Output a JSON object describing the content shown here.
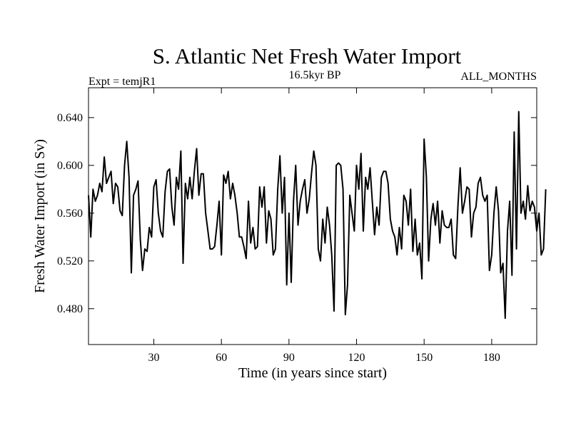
{
  "chart_data": {
    "type": "line",
    "title": "S. Atlantic Net Fresh Water Import",
    "subtitle_left": "Expt = temjR1",
    "subtitle_center": "16.5kyr BP",
    "subtitle_right": "ALL_MONTHS",
    "xlabel": "Time (in years since start)",
    "ylabel": "Fresh Water Import (in Sv)",
    "xlim": [
      1,
      200
    ],
    "ylim": [
      0.45,
      0.665
    ],
    "xticks": [
      30,
      60,
      90,
      120,
      150,
      180
    ],
    "xtick_labels": [
      "30",
      "60",
      "90",
      "120",
      "150",
      "180"
    ],
    "yticks": [
      0.48,
      0.52,
      0.56,
      0.6,
      0.64
    ],
    "ytick_labels": [
      "0.480",
      "0.520",
      "0.560",
      "0.600",
      "0.640"
    ],
    "series": [
      {
        "name": "Fresh Water Import",
        "x_start": 1,
        "x_step": 1,
        "values": [
          0.575,
          0.54,
          0.58,
          0.57,
          0.575,
          0.585,
          0.578,
          0.607,
          0.585,
          0.59,
          0.595,
          0.568,
          0.585,
          0.582,
          0.562,
          0.558,
          0.6,
          0.62,
          0.59,
          0.51,
          0.575,
          0.58,
          0.587,
          0.538,
          0.512,
          0.53,
          0.528,
          0.548,
          0.54,
          0.582,
          0.588,
          0.56,
          0.545,
          0.54,
          0.578,
          0.595,
          0.597,
          0.565,
          0.55,
          0.59,
          0.58,
          0.612,
          0.518,
          0.585,
          0.572,
          0.59,
          0.572,
          0.595,
          0.614,
          0.575,
          0.593,
          0.593,
          0.56,
          0.545,
          0.53,
          0.53,
          0.532,
          0.55,
          0.57,
          0.525,
          0.592,
          0.585,
          0.595,
          0.572,
          0.585,
          0.575,
          0.56,
          0.54,
          0.54,
          0.532,
          0.522,
          0.57,
          0.535,
          0.548,
          0.53,
          0.532,
          0.582,
          0.565,
          0.582,
          0.535,
          0.562,
          0.555,
          0.525,
          0.53,
          0.58,
          0.608,
          0.56,
          0.59,
          0.5,
          0.56,
          0.502,
          0.57,
          0.6,
          0.55,
          0.57,
          0.58,
          0.588,
          0.56,
          0.572,
          0.593,
          0.612,
          0.6,
          0.53,
          0.52,
          0.555,
          0.535,
          0.565,
          0.55,
          0.525,
          0.478,
          0.6,
          0.602,
          0.6,
          0.58,
          0.475,
          0.5,
          0.575,
          0.56,
          0.545,
          0.6,
          0.58,
          0.61,
          0.545,
          0.59,
          0.58,
          0.598,
          0.57,
          0.542,
          0.565,
          0.55,
          0.59,
          0.595,
          0.595,
          0.585,
          0.555,
          0.545,
          0.54,
          0.525,
          0.548,
          0.53,
          0.575,
          0.57,
          0.55,
          0.58,
          0.528,
          0.555,
          0.525,
          0.535,
          0.505,
          0.622,
          0.59,
          0.52,
          0.555,
          0.568,
          0.55,
          0.57,
          0.535,
          0.562,
          0.55,
          0.548,
          0.548,
          0.555,
          0.525,
          0.522,
          0.565,
          0.598,
          0.56,
          0.57,
          0.582,
          0.58,
          0.54,
          0.56,
          0.565,
          0.585,
          0.59,
          0.575,
          0.57,
          0.575,
          0.512,
          0.525,
          0.56,
          0.582,
          0.562,
          0.51,
          0.518,
          0.472,
          0.545,
          0.57,
          0.508,
          0.628,
          0.53,
          0.645,
          0.56,
          0.57,
          0.555,
          0.583,
          0.562,
          0.57,
          0.565,
          0.545,
          0.56,
          0.525,
          0.53,
          0.58
        ]
      }
    ]
  }
}
